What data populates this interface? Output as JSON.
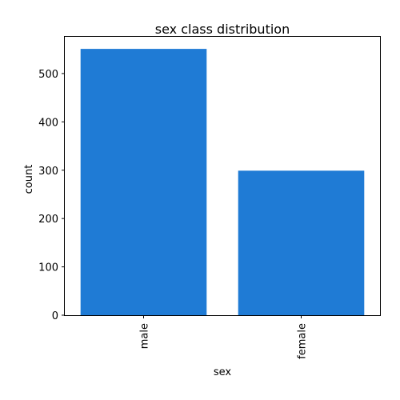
{
  "chart_data": {
    "type": "bar",
    "title": "sex class distribution",
    "xlabel": "sex",
    "ylabel": "count",
    "categories": [
      "male",
      "female"
    ],
    "values": [
      551,
      299
    ],
    "ylim": [
      0,
      576
    ],
    "yticks": [
      0,
      100,
      200,
      300,
      400,
      500
    ],
    "grid": false,
    "bar_color": "#1f7bd5"
  }
}
